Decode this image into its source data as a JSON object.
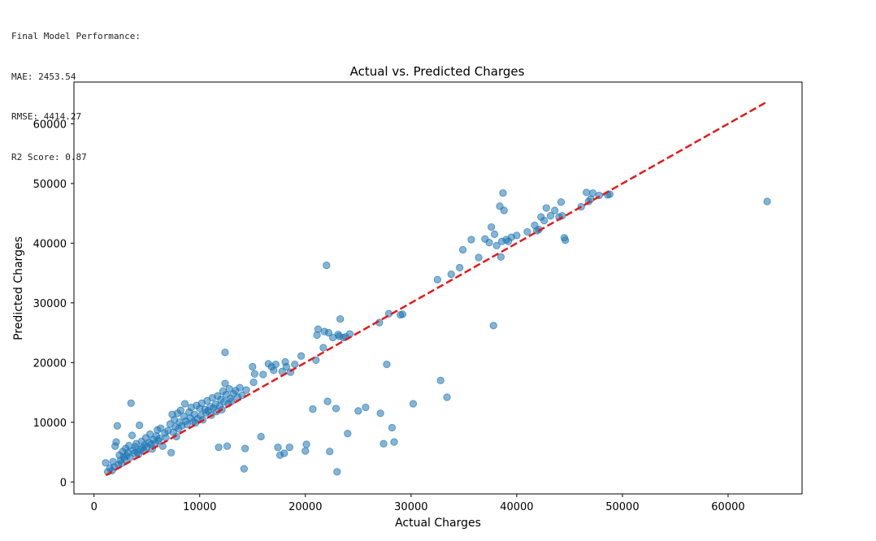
{
  "output_lines": [
    "Final Model Performance:",
    "MAE: 2453.54",
    "RMSE: 4414.27",
    "R2 Score: 0.87"
  ],
  "chart_data": {
    "type": "scatter",
    "title": "Actual vs. Predicted Charges",
    "xlabel": "Actual Charges",
    "ylabel": "Predicted Charges",
    "xlim": [
      -1900,
      67000
    ],
    "ylim": [
      -2000,
      67000
    ],
    "xticks": [
      0,
      10000,
      20000,
      30000,
      40000,
      50000,
      60000
    ],
    "yticks": [
      0,
      10000,
      20000,
      30000,
      40000,
      50000,
      60000
    ],
    "grid": false,
    "legend": "none",
    "colors": {
      "points": "#1f77b4",
      "reference_line": "#e31a1c"
    },
    "reference_line": {
      "style": "dashed",
      "x": [
        1121.87,
        63770.43
      ],
      "y": [
        1121.87,
        63770.43
      ]
    },
    "series": [
      {
        "points": [
          [
            1100,
            3200
          ],
          [
            1300,
            1700
          ],
          [
            1500,
            2300
          ],
          [
            1700,
            1900
          ],
          [
            1900,
            2500
          ],
          [
            2000,
            6000
          ],
          [
            2100,
            6700
          ],
          [
            2200,
            9400
          ],
          [
            1800,
            3400
          ],
          [
            2300,
            2900
          ],
          [
            2400,
            4500
          ],
          [
            2500,
            3600
          ],
          [
            2600,
            3100
          ],
          [
            2700,
            5100
          ],
          [
            2800,
            4200
          ],
          [
            2900,
            3800
          ],
          [
            3000,
            5600
          ],
          [
            3100,
            4400
          ],
          [
            3200,
            4900
          ],
          [
            3300,
            6100
          ],
          [
            3400,
            4100
          ],
          [
            3500,
            13200
          ],
          [
            3600,
            7800
          ],
          [
            3700,
            5300
          ],
          [
            3800,
            4800
          ],
          [
            3900,
            5900
          ],
          [
            4000,
            6400
          ],
          [
            4100,
            5000
          ],
          [
            4200,
            4600
          ],
          [
            4300,
            9500
          ],
          [
            4400,
            5400
          ],
          [
            4500,
            6800
          ],
          [
            4600,
            5700
          ],
          [
            4700,
            5200
          ],
          [
            4800,
            6200
          ],
          [
            4900,
            7400
          ],
          [
            5000,
            5900
          ],
          [
            5200,
            6600
          ],
          [
            5300,
            8000
          ],
          [
            5400,
            6300
          ],
          [
            5500,
            5500
          ],
          [
            5600,
            7100
          ],
          [
            5800,
            6500
          ],
          [
            5900,
            7700
          ],
          [
            6000,
            8700
          ],
          [
            6100,
            6900
          ],
          [
            6200,
            7300
          ],
          [
            6300,
            9000
          ],
          [
            6500,
            6000
          ],
          [
            6700,
            8200
          ],
          [
            6800,
            7400
          ],
          [
            7000,
            8600
          ],
          [
            7200,
            9700
          ],
          [
            7300,
            4900
          ],
          [
            7400,
            11300
          ],
          [
            7500,
            8300
          ],
          [
            7600,
            10400
          ],
          [
            7700,
            9200
          ],
          [
            7800,
            7600
          ],
          [
            7900,
            11500
          ],
          [
            8000,
            8900
          ],
          [
            8100,
            10000
          ],
          [
            8200,
            12000
          ],
          [
            8300,
            9400
          ],
          [
            8500,
            11000
          ],
          [
            8600,
            13100
          ],
          [
            8700,
            10200
          ],
          [
            8800,
            9600
          ],
          [
            9000,
            11700
          ],
          [
            9100,
            10700
          ],
          [
            9200,
            12500
          ],
          [
            9400,
            10100
          ],
          [
            9500,
            11300
          ],
          [
            9600,
            9900
          ],
          [
            9700,
            12800
          ],
          [
            9800,
            10600
          ],
          [
            10000,
            12300
          ],
          [
            10100,
            11100
          ],
          [
            10200,
            13200
          ],
          [
            10300,
            10400
          ],
          [
            10500,
            12100
          ],
          [
            10600,
            11600
          ],
          [
            10700,
            13600
          ],
          [
            10800,
            11900
          ],
          [
            11000,
            12600
          ],
          [
            11100,
            11200
          ],
          [
            11200,
            14100
          ],
          [
            11300,
            12400
          ],
          [
            11500,
            13000
          ],
          [
            11600,
            11800
          ],
          [
            11700,
            14400
          ],
          [
            11800,
            5800
          ],
          [
            11900,
            12700
          ],
          [
            12000,
            13800
          ],
          [
            12100,
            12100
          ],
          [
            12200,
            15200
          ],
          [
            12300,
            13400
          ],
          [
            12400,
            21700
          ],
          [
            12400,
            16500
          ],
          [
            12500,
            14600
          ],
          [
            12600,
            6000
          ],
          [
            12700,
            13100
          ],
          [
            12800,
            15600
          ],
          [
            12900,
            14000
          ],
          [
            13000,
            13500
          ],
          [
            13200,
            14800
          ],
          [
            13400,
            15300
          ],
          [
            13600,
            14200
          ],
          [
            13800,
            15800
          ],
          [
            14000,
            14500
          ],
          [
            14200,
            2200
          ],
          [
            14300,
            5600
          ],
          [
            14400,
            15400
          ],
          [
            15000,
            19300
          ],
          [
            15100,
            16700
          ],
          [
            15200,
            18100
          ],
          [
            15800,
            7600
          ],
          [
            16000,
            18000
          ],
          [
            16500,
            19800
          ],
          [
            16800,
            19300
          ],
          [
            17000,
            18700
          ],
          [
            17200,
            19700
          ],
          [
            17400,
            5800
          ],
          [
            17600,
            4500
          ],
          [
            17800,
            18500
          ],
          [
            18000,
            4800
          ],
          [
            18100,
            20100
          ],
          [
            18200,
            19300
          ],
          [
            18500,
            5800
          ],
          [
            18600,
            18400
          ],
          [
            19000,
            19700
          ],
          [
            19600,
            21100
          ],
          [
            20000,
            5200
          ],
          [
            20100,
            6300
          ],
          [
            20700,
            12200
          ],
          [
            21000,
            20400
          ],
          [
            21100,
            24600
          ],
          [
            21200,
            25600
          ],
          [
            21700,
            22500
          ],
          [
            21800,
            25200
          ],
          [
            22000,
            36300
          ],
          [
            22100,
            13500
          ],
          [
            22200,
            25000
          ],
          [
            22300,
            5100
          ],
          [
            22600,
            24200
          ],
          [
            22900,
            12300
          ],
          [
            23000,
            1700
          ],
          [
            23100,
            24700
          ],
          [
            23200,
            24400
          ],
          [
            23300,
            27300
          ],
          [
            23600,
            24200
          ],
          [
            23800,
            24300
          ],
          [
            24000,
            8100
          ],
          [
            24200,
            24800
          ],
          [
            25000,
            11900
          ],
          [
            25700,
            12500
          ],
          [
            27000,
            26700
          ],
          [
            27100,
            11500
          ],
          [
            27400,
            6400
          ],
          [
            27700,
            19700
          ],
          [
            27900,
            28200
          ],
          [
            28200,
            9100
          ],
          [
            28400,
            6700
          ],
          [
            29000,
            28000
          ],
          [
            29200,
            28100
          ],
          [
            30200,
            13100
          ],
          [
            32500,
            33900
          ],
          [
            32800,
            17000
          ],
          [
            33400,
            14200
          ],
          [
            33800,
            34800
          ],
          [
            34600,
            35900
          ],
          [
            34900,
            38900
          ],
          [
            35700,
            40600
          ],
          [
            36400,
            37600
          ],
          [
            37000,
            40700
          ],
          [
            37400,
            40100
          ],
          [
            37600,
            42700
          ],
          [
            37800,
            26200
          ],
          [
            37900,
            41500
          ],
          [
            38100,
            39600
          ],
          [
            38400,
            46200
          ],
          [
            38500,
            37700
          ],
          [
            38600,
            40300
          ],
          [
            38700,
            48400
          ],
          [
            38800,
            45500
          ],
          [
            39000,
            40600
          ],
          [
            39200,
            40300
          ],
          [
            39500,
            41000
          ],
          [
            40000,
            41300
          ],
          [
            41000,
            41900
          ],
          [
            41700,
            43000
          ],
          [
            41900,
            42100
          ],
          [
            42100,
            42300
          ],
          [
            42300,
            44400
          ],
          [
            42600,
            43800
          ],
          [
            42800,
            45900
          ],
          [
            43200,
            44600
          ],
          [
            43600,
            45500
          ],
          [
            44000,
            44400
          ],
          [
            44200,
            46900
          ],
          [
            44300,
            44600
          ],
          [
            44500,
            40900
          ],
          [
            44600,
            40500
          ],
          [
            46100,
            46100
          ],
          [
            46600,
            48500
          ],
          [
            46800,
            47000
          ],
          [
            47000,
            47400
          ],
          [
            47200,
            48400
          ],
          [
            47800,
            48000
          ],
          [
            48600,
            48100
          ],
          [
            48800,
            48200
          ],
          [
            63700,
            47000
          ]
        ]
      }
    ]
  }
}
